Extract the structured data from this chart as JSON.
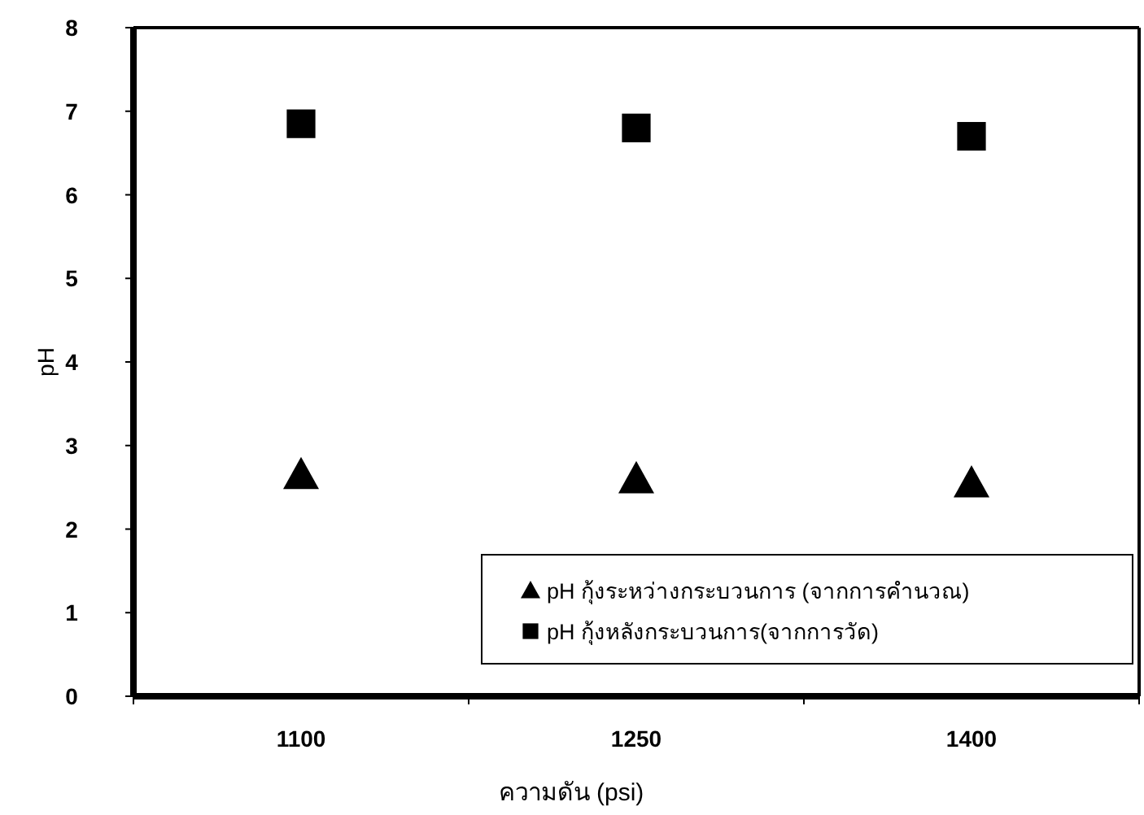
{
  "chart_data": {
    "type": "scatter",
    "xlabel": "ความดัน (psi)",
    "ylabel": "pH",
    "categories": [
      "1100",
      "1250",
      "1400"
    ],
    "ylim": [
      0,
      8
    ],
    "yticks": [
      0,
      1,
      2,
      3,
      4,
      5,
      6,
      7,
      8
    ],
    "grid": false,
    "legend": "bottom right",
    "series": [
      {
        "name": "pH กุ้งระหว่างกระบวนการ (จากการคำนวณ)",
        "color": "#000000",
        "marker": "triangle",
        "values": [
          2.65,
          2.6,
          2.55
        ]
      },
      {
        "name": "pH กุ้งหลังกระบวนการ(จากการวัด)",
        "color": "#000000",
        "marker": "square",
        "values": [
          6.85,
          6.8,
          6.7
        ]
      }
    ]
  }
}
